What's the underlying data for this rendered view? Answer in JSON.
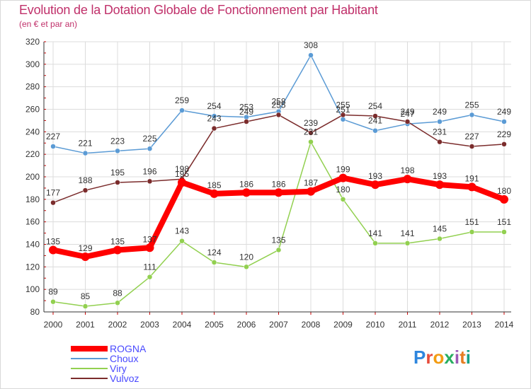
{
  "title": "Evolution de la Dotation Globale de Fonctionnement par Habitant",
  "subtitle": "(en € et par an)",
  "logo_text": "Proxiti",
  "chart_data": {
    "type": "line",
    "title": "Evolution de la Dotation Globale de Fonctionnement par Habitant",
    "subtitle": "(en € et par an)",
    "categories": [
      "2000",
      "2001",
      "2002",
      "2003",
      "2004",
      "2005",
      "2006",
      "2007",
      "2008",
      "2009",
      "2010",
      "2011",
      "2012",
      "2013",
      "2014"
    ],
    "ylim": [
      80,
      320
    ],
    "yticks": [
      80,
      100,
      120,
      140,
      160,
      180,
      200,
      220,
      240,
      260,
      280,
      300,
      320
    ],
    "grid": true,
    "legend_position": "bottom-left",
    "series": [
      {
        "name": "ROGNA",
        "color": "#ff0000",
        "values": [
          135,
          129,
          135,
          137,
          195,
          185,
          186,
          186,
          187,
          199,
          193,
          198,
          193,
          191,
          180
        ]
      },
      {
        "name": "Choux",
        "color": "#5b9bd5",
        "values": [
          227,
          221,
          223,
          225,
          259,
          254,
          253,
          258,
          308,
          251,
          241,
          247,
          249,
          255,
          249
        ]
      },
      {
        "name": "Viry",
        "color": "#92d050",
        "values": [
          89,
          85,
          88,
          111,
          143,
          124,
          120,
          135,
          231,
          180,
          141,
          141,
          145,
          151,
          151
        ]
      },
      {
        "name": "Vulvoz",
        "color": "#7b2c2c",
        "values": [
          177,
          188,
          195,
          196,
          198,
          243,
          249,
          255,
          239,
          255,
          254,
          249,
          231,
          227,
          229
        ]
      }
    ]
  }
}
